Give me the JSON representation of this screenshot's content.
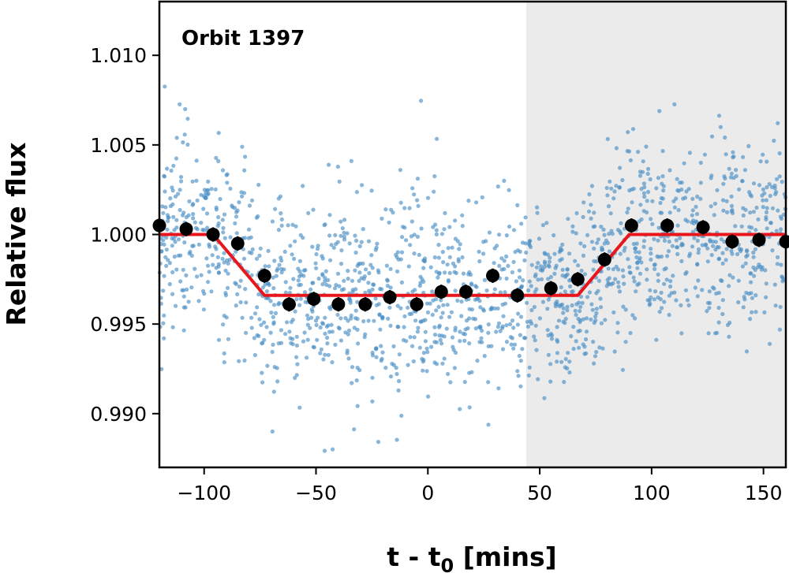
{
  "chart_data": {
    "type": "scatter",
    "annotation": "Orbit 1397",
    "xlabel": "t - t",
    "xlabel_subscript": "0",
    "xlabel_suffix": " [mins]",
    "ylabel": "Relative flux",
    "xlim": [
      -120,
      160
    ],
    "ylim": [
      0.987,
      1.013
    ],
    "x_ticks": [
      -100,
      -50,
      0,
      50,
      100,
      150
    ],
    "x_tick_labels": [
      "−100",
      "−50",
      "0",
      "50",
      "100",
      "150"
    ],
    "y_ticks": [
      0.99,
      0.995,
      1.0,
      1.005,
      1.01
    ],
    "y_tick_labels": [
      "0.990",
      "0.995",
      "1.000",
      "1.005",
      "1.010"
    ],
    "grid": false,
    "shaded_region": {
      "x_start": 44,
      "x_end": 160,
      "color": "#ebebeb"
    },
    "raw_scatter": {
      "color": "#4a8fc4",
      "x_range": [
        -120,
        160
      ],
      "scatter_std": 0.0027
    },
    "binned": {
      "color": "#000000",
      "x": [
        -120,
        -108,
        -96,
        -85,
        -73,
        -62,
        -51,
        -40,
        -28,
        -17,
        -5,
        6,
        17,
        29,
        40,
        55,
        67,
        79,
        91,
        107,
        123,
        136,
        148,
        160
      ],
      "y": [
        1.0005,
        1.0003,
        1.0,
        0.9995,
        0.9977,
        0.9961,
        0.9964,
        0.9961,
        0.9961,
        0.9965,
        0.9961,
        0.9968,
        0.9968,
        0.9977,
        0.9966,
        0.997,
        0.9975,
        0.9986,
        1.0005,
        1.0005,
        1.0004,
        0.9996,
        0.9997,
        0.9996
      ],
      "yerr": 0.0004
    },
    "model": {
      "color": "#e8151b",
      "x": [
        -120,
        -96,
        -73,
        67,
        90,
        160
      ],
      "y": [
        1.0,
        1.0,
        0.9966,
        0.9966,
        1.0,
        1.0
      ]
    }
  }
}
